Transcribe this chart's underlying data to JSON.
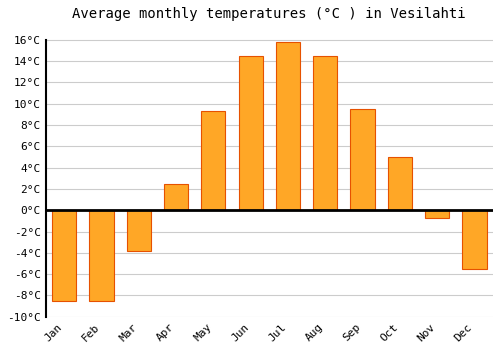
{
  "title": "Average monthly temperatures (°C ) in Vesilahti",
  "months": [
    "Jan",
    "Feb",
    "Mar",
    "Apr",
    "May",
    "Jun",
    "Jul",
    "Aug",
    "Sep",
    "Oct",
    "Nov",
    "Dec"
  ],
  "temperatures": [
    -8.5,
    -8.5,
    -3.8,
    2.5,
    9.3,
    14.5,
    15.8,
    14.5,
    9.5,
    5.0,
    -0.7,
    -5.5
  ],
  "bar_color": "#FFA726",
  "bar_edge_color": "#E65100",
  "ylim": [
    -10,
    17
  ],
  "yticks": [
    -10,
    -8,
    -6,
    -4,
    -2,
    0,
    2,
    4,
    6,
    8,
    10,
    12,
    14,
    16
  ],
  "background_color": "#ffffff",
  "grid_color": "#cccccc",
  "zero_line_color": "#000000",
  "title_fontsize": 10,
  "tick_fontsize": 8,
  "font_family": "monospace"
}
